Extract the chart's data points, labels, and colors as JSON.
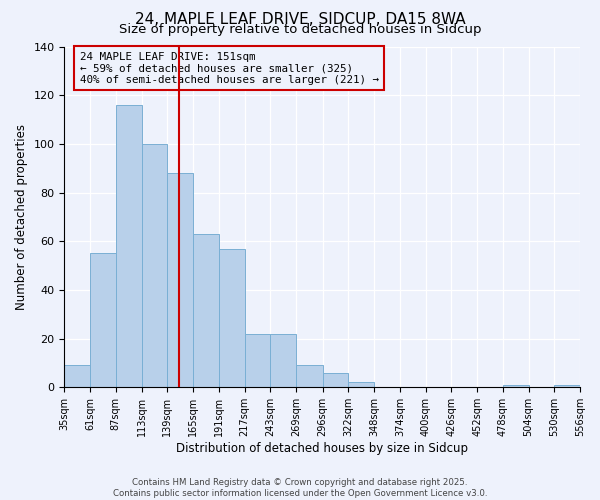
{
  "title": "24, MAPLE LEAF DRIVE, SIDCUP, DA15 8WA",
  "subtitle": "Size of property relative to detached houses in Sidcup",
  "xlabel": "Distribution of detached houses by size in Sidcup",
  "ylabel": "Number of detached properties",
  "bin_edges": [
    35,
    61,
    87,
    113,
    139,
    165,
    191,
    217,
    243,
    269,
    296,
    322,
    348,
    374,
    400,
    426,
    452,
    478,
    504,
    530,
    556
  ],
  "bin_counts": [
    9,
    55,
    116,
    100,
    88,
    63,
    57,
    22,
    22,
    9,
    6,
    2,
    0,
    0,
    0,
    0,
    0,
    1,
    0,
    1
  ],
  "bar_color": "#b8d0ea",
  "bar_edge_color": "#7aafd4",
  "vline_x": 151,
  "vline_color": "#cc0000",
  "annotation_box_text": "24 MAPLE LEAF DRIVE: 151sqm\n← 59% of detached houses are smaller (325)\n40% of semi-detached houses are larger (221) →",
  "box_edge_color": "#cc0000",
  "ylim": [
    0,
    140
  ],
  "yticks": [
    0,
    20,
    40,
    60,
    80,
    100,
    120,
    140
  ],
  "bg_color": "#eef2fc",
  "footer_text": "Contains HM Land Registry data © Crown copyright and database right 2025.\nContains public sector information licensed under the Open Government Licence v3.0.",
  "tick_labels": [
    "35sqm",
    "61sqm",
    "87sqm",
    "113sqm",
    "139sqm",
    "165sqm",
    "191sqm",
    "217sqm",
    "243sqm",
    "269sqm",
    "296sqm",
    "322sqm",
    "348sqm",
    "374sqm",
    "400sqm",
    "426sqm",
    "452sqm",
    "478sqm",
    "504sqm",
    "530sqm",
    "556sqm"
  ],
  "title_fontsize": 11,
  "subtitle_fontsize": 9.5,
  "xlabel_fontsize": 8.5,
  "ylabel_fontsize": 8.5,
  "tick_fontsize": 7,
  "footer_fontsize": 6.2
}
